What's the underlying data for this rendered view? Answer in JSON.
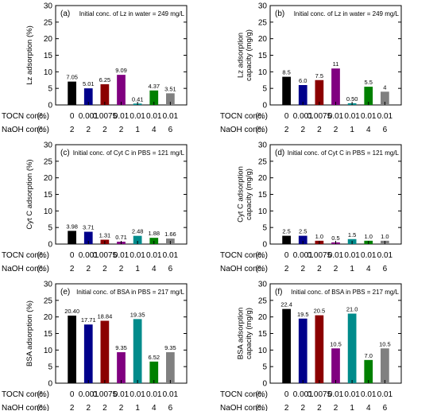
{
  "row_labels": {
    "toc": "TOCN conc.",
    "naoh": "NaOH conc.",
    "unit": "(%)"
  },
  "colors": [
    "#000000",
    "#00008b",
    "#8b0000",
    "#800080",
    "#008b8b",
    "#008000",
    "#808080"
  ],
  "chart_data": [
    {
      "type": "bar",
      "panel_label": "(a)",
      "note": "Initial conc. of Lz in water = 249 mg/L",
      "ylabel": [
        "Lz adsorption (%)"
      ],
      "ylim": [
        0,
        30
      ],
      "yticks": [
        0,
        5,
        10,
        15,
        20,
        25,
        30
      ],
      "categories": [
        "0",
        "0.001",
        "0.0075",
        "0.01",
        "0.01",
        "0.01",
        "0.01"
      ],
      "naoh": [
        "2",
        "2",
        "2",
        "2",
        "1",
        "4",
        "6"
      ],
      "values": [
        7.05,
        5.01,
        6.25,
        9.09,
        0.41,
        4.37,
        3.51
      ],
      "value_labels": [
        "7.05",
        "5.01",
        "6.25",
        "9.09",
        "0.41",
        "4.37",
        "3.51"
      ]
    },
    {
      "type": "bar",
      "panel_label": "(b)",
      "note": "Initial conc. of Lz in water = 249 mg/L",
      "ylabel": [
        "Lz adsorption",
        "capacity (mg/g)"
      ],
      "ylim": [
        0,
        30
      ],
      "yticks": [
        0,
        5,
        10,
        15,
        20,
        25,
        30
      ],
      "categories": [
        "0",
        "0.001",
        "0.0075",
        "0.01",
        "0.01",
        "0.01",
        "0.01"
      ],
      "naoh": [
        "2",
        "2",
        "2",
        "2",
        "1",
        "4",
        "6"
      ],
      "values": [
        8.5,
        6.0,
        7.5,
        11,
        0.5,
        5.5,
        4
      ],
      "value_labels": [
        "8.5",
        "6.0",
        "7.5",
        "11",
        "0.50",
        "5.5",
        "4"
      ]
    },
    {
      "type": "bar",
      "panel_label": "(c)",
      "note": "Initial conc. of Cyt C in PBS = 121 mg/L",
      "ylabel": [
        "Cyt C adsorption (%)"
      ],
      "ylim": [
        0,
        30
      ],
      "yticks": [
        0,
        5,
        10,
        15,
        20,
        25,
        30
      ],
      "categories": [
        "0",
        "0.001",
        "0.0075",
        "0.01",
        "0.01",
        "0.01",
        "0.01"
      ],
      "naoh": [
        "2",
        "2",
        "2",
        "2",
        "1",
        "4",
        "6"
      ],
      "values": [
        3.98,
        3.71,
        1.31,
        0.71,
        2.48,
        1.88,
        1.66
      ],
      "value_labels": [
        "3.98",
        "3.71",
        "1.31",
        "0.71",
        "2.48",
        "1.88",
        "1.66"
      ]
    },
    {
      "type": "bar",
      "panel_label": "(d)",
      "note": "Initial conc. of Cyt C in PBS = 121 mg/L",
      "ylabel": [
        "Cyt C adsorption",
        "capacity (mg/g)"
      ],
      "ylim": [
        0,
        30
      ],
      "yticks": [
        0,
        5,
        10,
        15,
        20,
        25,
        30
      ],
      "categories": [
        "0",
        "0.001",
        "0.0075",
        "0.01",
        "0.01",
        "0.01",
        "0.01"
      ],
      "naoh": [
        "2",
        "2",
        "2",
        "2",
        "1",
        "4",
        "6"
      ],
      "values": [
        2.5,
        2.5,
        1.0,
        0.5,
        1.5,
        1.0,
        1.0
      ],
      "value_labels": [
        "2.5",
        "2.5",
        "1.0",
        "0.5",
        "1.5",
        "1.0",
        "1.0"
      ]
    },
    {
      "type": "bar",
      "panel_label": "(e)",
      "note": "Initial conc. of BSA in PBS = 217 mg/L",
      "ylabel": [
        "BSA adsorption (%)"
      ],
      "ylim": [
        0,
        30
      ],
      "yticks": [
        0,
        5,
        10,
        15,
        20,
        25,
        30
      ],
      "categories": [
        "0",
        "0.001",
        "0.0075",
        "0.01",
        "0.01",
        "0.01",
        "0.01"
      ],
      "naoh": [
        "2",
        "2",
        "2",
        "2",
        "1",
        "4",
        "6"
      ],
      "values": [
        20.4,
        17.71,
        18.84,
        9.35,
        19.35,
        6.52,
        9.35
      ],
      "value_labels": [
        "20.40",
        "17.71",
        "18.84",
        "9.35",
        "19.35",
        "6.52",
        "9.35"
      ]
    },
    {
      "type": "bar",
      "panel_label": "(f)",
      "note": "Initial conc. of BSA in PBS = 217 mg/L",
      "ylabel": [
        "BSA adsorption",
        "capacity (mg/g)"
      ],
      "ylim": [
        0,
        30
      ],
      "yticks": [
        0,
        5,
        10,
        15,
        20,
        25,
        30
      ],
      "categories": [
        "0",
        "0.001",
        "0.0075",
        "0.01",
        "0.01",
        "0.01",
        "0.01"
      ],
      "naoh": [
        "2",
        "2",
        "2",
        "2",
        "1",
        "4",
        "6"
      ],
      "values": [
        22.4,
        19.5,
        20.5,
        10.5,
        21.0,
        7.0,
        10.5
      ],
      "value_labels": [
        "22.4",
        "19.5",
        "20.5",
        "10.5",
        "21.0",
        "7.0",
        "10.5"
      ]
    }
  ]
}
